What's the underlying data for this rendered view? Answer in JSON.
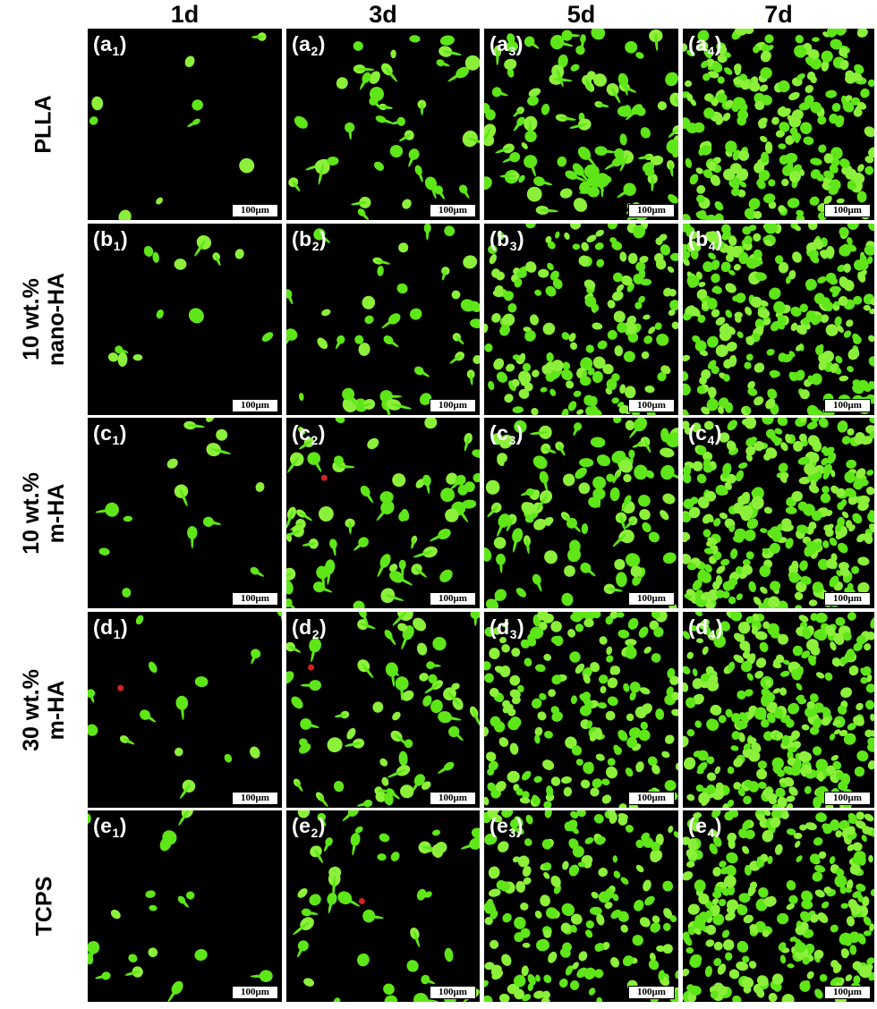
{
  "columns": [
    {
      "label": "1d"
    },
    {
      "label": "3d"
    },
    {
      "label": "5d"
    },
    {
      "label": "7d"
    }
  ],
  "rows": [
    {
      "label_lines": [
        "PLLA"
      ],
      "letter": "a"
    },
    {
      "label_lines": [
        "10 wt.%",
        "nano-HA"
      ],
      "letter": "b"
    },
    {
      "label_lines": [
        "10 wt.%",
        "m-HA"
      ],
      "letter": "c"
    },
    {
      "label_lines": [
        "30 wt.%",
        "m-HA"
      ],
      "letter": "d"
    },
    {
      "label_lines": [
        "TCPS"
      ],
      "letter": "e"
    }
  ],
  "scale_bar_text": "100μm",
  "cell_density": [
    [
      9,
      38,
      95,
      240
    ],
    [
      14,
      40,
      175,
      270
    ],
    [
      14,
      55,
      95,
      300
    ],
    [
      14,
      60,
      180,
      290
    ],
    [
      18,
      40,
      170,
      280
    ]
  ],
  "dead_cells": [
    [
      0,
      0,
      0,
      0
    ],
    [
      0,
      0,
      0,
      0
    ],
    [
      0,
      1,
      0,
      0
    ],
    [
      1,
      1,
      0,
      0
    ],
    [
      0,
      1,
      0,
      0
    ]
  ],
  "colors": {
    "live_cell": "#5fe619",
    "live_cell_bright": "#8cf03a",
    "dead_cell": "#d42020",
    "panel_background": "#000000",
    "text": "#000000",
    "panel_label": "#ffffff"
  }
}
